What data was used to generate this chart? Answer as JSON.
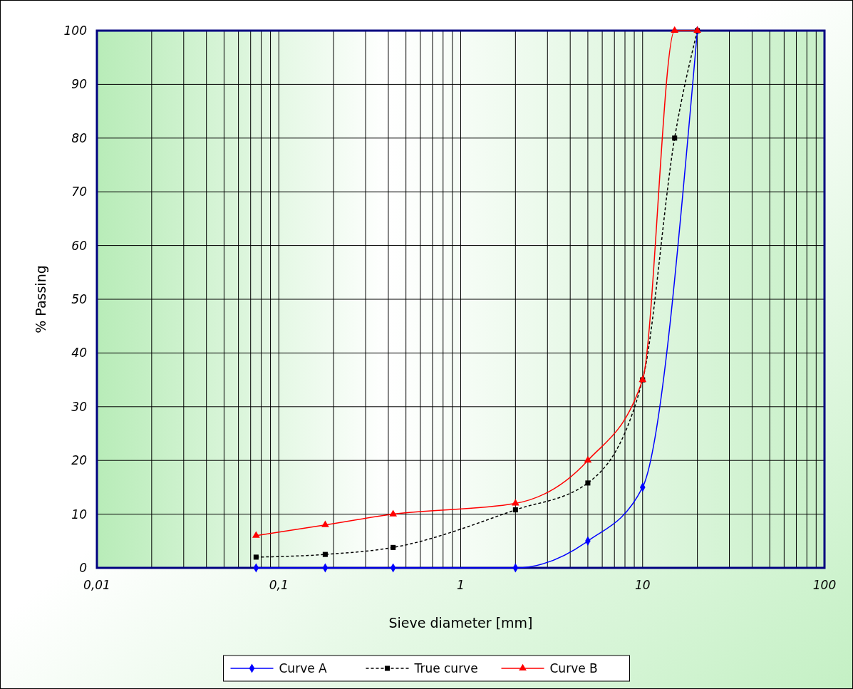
{
  "chart_data": {
    "type": "line",
    "xlabel": "Sieve diameter [mm]",
    "ylabel": "% Passing",
    "log": "x",
    "grid": true,
    "legend": "bottom",
    "xlim": [
      0.01,
      100
    ],
    "ylim": [
      0,
      100
    ],
    "yticks": [
      0,
      10,
      20,
      30,
      40,
      50,
      60,
      70,
      80,
      90,
      100
    ],
    "xticks": [
      {
        "value": 0.01,
        "label": "0,01"
      },
      {
        "value": 0.02,
        "label": null
      },
      {
        "value": 0.03,
        "label": null
      },
      {
        "value": 0.04,
        "label": null
      },
      {
        "value": 0.05,
        "label": null
      },
      {
        "value": 0.06,
        "label": null
      },
      {
        "value": 0.07,
        "label": null
      },
      {
        "value": 0.08,
        "label": null
      },
      {
        "value": 0.09,
        "label": null
      },
      {
        "value": 0.1,
        "label": "0,1"
      },
      {
        "value": 0.2,
        "label": null
      },
      {
        "value": 0.3,
        "label": null
      },
      {
        "value": 0.4,
        "label": null
      },
      {
        "value": 0.5,
        "label": null
      },
      {
        "value": 0.6,
        "label": null
      },
      {
        "value": 0.7,
        "label": null
      },
      {
        "value": 0.8,
        "label": null
      },
      {
        "value": 0.9,
        "label": null
      },
      1,
      {
        "value": 2,
        "label": null
      },
      {
        "value": 3,
        "label": null
      },
      {
        "value": 4,
        "label": null
      },
      {
        "value": 5,
        "label": null
      },
      {
        "value": 6,
        "label": null
      },
      {
        "value": 7,
        "label": null
      },
      {
        "value": 8,
        "label": null
      },
      {
        "value": 9,
        "label": null
      },
      10,
      {
        "value": 20,
        "label": null
      },
      {
        "value": 30,
        "label": null
      },
      {
        "value": 40,
        "label": null
      },
      {
        "value": 50,
        "label": null
      },
      {
        "value": 60,
        "label": null
      },
      {
        "value": 70,
        "label": null
      },
      {
        "value": 80,
        "label": null
      },
      {
        "value": 90,
        "label": null
      },
      100
    ],
    "series": [
      {
        "name": "Curve A",
        "color": "#0000ff",
        "marker": "diamond",
        "line_style": "solid",
        "x": [
          0.075,
          0.18,
          0.425,
          2,
          5,
          10,
          20
        ],
        "values": [
          0,
          0,
          0,
          0,
          5,
          15,
          100
        ]
      },
      {
        "name": "True curve",
        "color": "#000000",
        "marker": "square",
        "line_style": "dashed",
        "x": [
          0.075,
          0.18,
          0.425,
          2,
          5,
          10,
          15,
          20
        ],
        "values": [
          2,
          2.5,
          3.8,
          10.8,
          15.8,
          35,
          80,
          100
        ]
      },
      {
        "name": "Curve B",
        "color": "#ff0000",
        "marker": "triangle",
        "line_style": "solid",
        "x": [
          0.075,
          0.18,
          0.425,
          2,
          5,
          10,
          15,
          20
        ],
        "values": [
          6,
          8,
          10,
          12,
          20,
          35,
          100,
          100
        ]
      }
    ]
  }
}
